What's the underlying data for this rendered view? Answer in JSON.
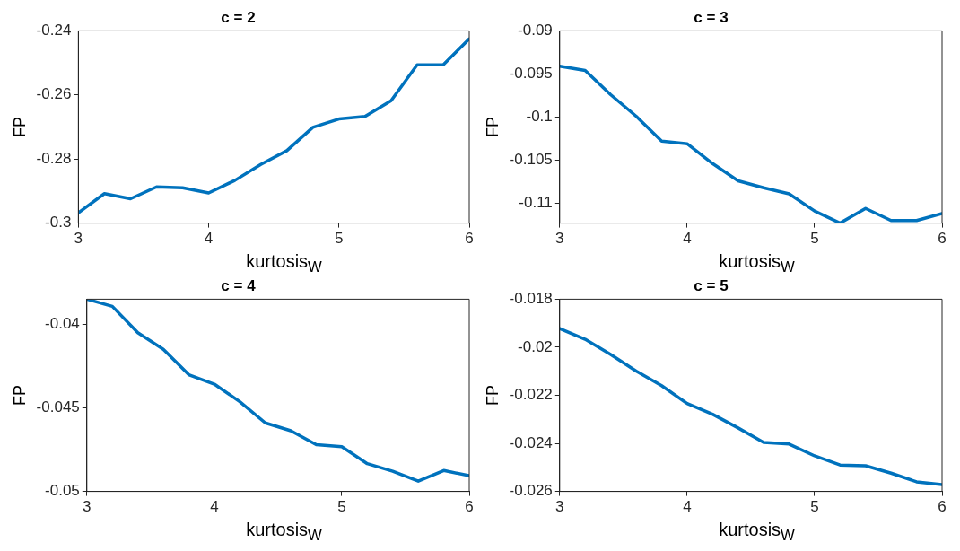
{
  "chart_data": [
    {
      "type": "line",
      "title": "c = 2",
      "xlabel": "kurtosis$_{W}$",
      "ylabel": "FP",
      "x": [
        3,
        3.2,
        3.4,
        3.6,
        3.8,
        4,
        4.2,
        4.4,
        4.6,
        4.8,
        5,
        5.2,
        5.4,
        5.6,
        5.8,
        6
      ],
      "series": [
        {
          "color": "#0072bd",
          "values": [
            -0.2968,
            -0.2908,
            -0.2924,
            -0.2887,
            -0.289,
            -0.2906,
            -0.2867,
            -0.2817,
            -0.2774,
            -0.2701,
            -0.2675,
            -0.2667,
            -0.2618,
            -0.2506,
            -0.2506,
            -0.2425
          ]
        }
      ],
      "xlim": [
        3,
        6
      ],
      "xticks": [
        3,
        4,
        5,
        6
      ],
      "ylim": [
        -0.3,
        -0.24
      ],
      "yticks": [
        -0.3,
        -0.28,
        -0.26,
        -0.24
      ],
      "marker": "none",
      "line_style": "solid",
      "legend": false
    },
    {
      "type": "line",
      "title": "c = 3",
      "xlabel": "kurtosis$_{W}$",
      "ylabel": "FP",
      "x": [
        3,
        3.2,
        3.4,
        3.6,
        3.8,
        4,
        4.2,
        4.4,
        4.6,
        4.8,
        5,
        5.2,
        5.4,
        5.6,
        5.8,
        6
      ],
      "series": [
        {
          "color": "#0072bd",
          "values": [
            -0.0941,
            -0.0946,
            -0.0974,
            -0.0999,
            -0.1028,
            -0.1031,
            -0.1054,
            -0.1074,
            -0.1082,
            -0.1089,
            -0.1109,
            -0.1123,
            -0.1106,
            -0.112,
            -0.112,
            -0.1112
          ]
        }
      ],
      "xlim": [
        3,
        6
      ],
      "xticks": [
        3,
        4,
        5,
        6
      ],
      "ylim": [
        -0.1123,
        -0.09
      ],
      "yticks": [
        -0.11,
        -0.105,
        -0.1,
        -0.095,
        -0.09
      ],
      "marker": "none",
      "line_style": "solid",
      "legend": false
    },
    {
      "type": "line",
      "title": "c = 4",
      "xlabel": "kurtosis$_{W}$",
      "ylabel": "FP",
      "x": [
        3,
        3.2,
        3.4,
        3.6,
        3.8,
        4,
        4.2,
        4.4,
        4.6,
        4.8,
        5,
        5.2,
        5.4,
        5.6,
        5.8,
        6
      ],
      "series": [
        {
          "color": "#0072bd",
          "values": [
            -0.0385,
            -0.03893,
            -0.04051,
            -0.0415,
            -0.04302,
            -0.04358,
            -0.04463,
            -0.0459,
            -0.04637,
            -0.0472,
            -0.04732,
            -0.04834,
            -0.04879,
            -0.04939,
            -0.04875,
            -0.04906
          ]
        }
      ],
      "xlim": [
        3,
        6
      ],
      "xticks": [
        3,
        4,
        5,
        6
      ],
      "ylim": [
        -0.05,
        -0.0385
      ],
      "yticks": [
        -0.05,
        -0.045,
        -0.04
      ],
      "marker": "none",
      "line_style": "solid",
      "legend": false
    },
    {
      "type": "line",
      "title": "c = 5",
      "xlabel": "kurtosis$_{W}$",
      "ylabel": "FP",
      "x": [
        3,
        3.2,
        3.4,
        3.6,
        3.8,
        4,
        4.2,
        4.4,
        4.6,
        4.8,
        5,
        5.2,
        5.4,
        5.6,
        5.8,
        6
      ],
      "series": [
        {
          "color": "#0072bd",
          "values": [
            -0.01922,
            -0.01967,
            -0.0203,
            -0.02099,
            -0.0216,
            -0.02234,
            -0.02279,
            -0.02336,
            -0.02396,
            -0.02403,
            -0.02452,
            -0.0249,
            -0.02493,
            -0.02524,
            -0.0256,
            -0.02572
          ]
        }
      ],
      "xlim": [
        3,
        6
      ],
      "xticks": [
        3,
        4,
        5,
        6
      ],
      "ylim": [
        -0.026,
        -0.018
      ],
      "yticks": [
        -0.026,
        -0.024,
        -0.022,
        -0.02,
        -0.018
      ],
      "marker": "none",
      "line_style": "solid",
      "legend": false
    }
  ]
}
